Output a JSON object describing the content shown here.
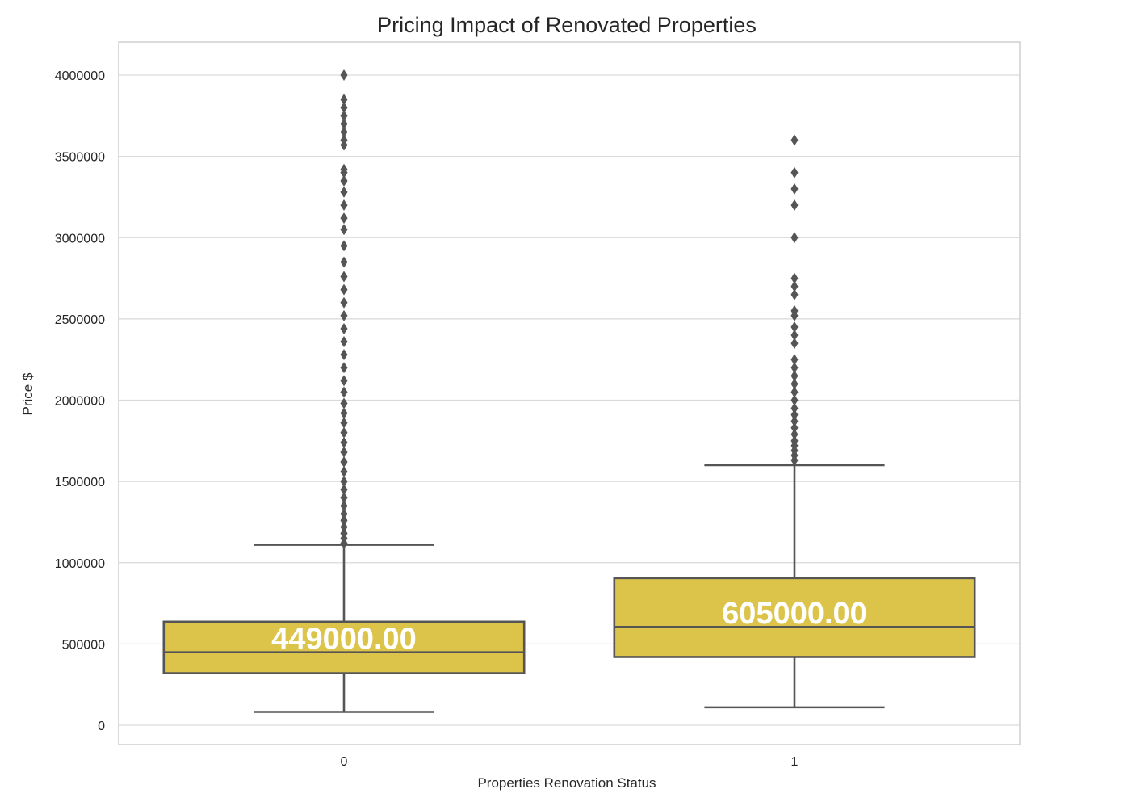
{
  "chart_data": {
    "type": "box",
    "title": "Pricing Impact of Renovated Properties",
    "xlabel": "Properties Renovation Status",
    "ylabel": "Price $",
    "ylim": [
      -100000,
      4200000
    ],
    "yticks": [
      0,
      500000,
      1000000,
      1500000,
      2000000,
      2500000,
      3000000,
      3500000,
      4000000
    ],
    "ytick_labels": [
      "0",
      "500000",
      "1000000",
      "1500000",
      "2000000",
      "2500000",
      "3000000",
      "3500000",
      "4000000"
    ],
    "categories": [
      "0",
      "1"
    ],
    "grid": true,
    "box_color": "#dcc44a",
    "edge_color": "#555555",
    "boxes": [
      {
        "category": "0",
        "whisker_low": 82000,
        "q1": 320000,
        "median": 449000,
        "q3": 637000,
        "whisker_high": 1110000,
        "median_label": "449000.00",
        "outliers": [
          1120000,
          1150000,
          1180000,
          1220000,
          1260000,
          1300000,
          1350000,
          1400000,
          1450000,
          1500000,
          1560000,
          1620000,
          1680000,
          1740000,
          1800000,
          1860000,
          1920000,
          1980000,
          2050000,
          2120000,
          2200000,
          2280000,
          2360000,
          2440000,
          2520000,
          2600000,
          2680000,
          2760000,
          2850000,
          2950000,
          3050000,
          3120000,
          3200000,
          3280000,
          3350000,
          3400000,
          3420000,
          3570000,
          3600000,
          3650000,
          3700000,
          3750000,
          3800000,
          3850000,
          4000000
        ]
      },
      {
        "category": "1",
        "whisker_low": 110000,
        "q1": 420000,
        "median": 605000,
        "q3": 905000,
        "whisker_high": 1600000,
        "median_label": "605000.00",
        "outliers": [
          1630000,
          1660000,
          1690000,
          1720000,
          1750000,
          1790000,
          1830000,
          1870000,
          1910000,
          1950000,
          2000000,
          2050000,
          2100000,
          2150000,
          2200000,
          2250000,
          2350000,
          2400000,
          2450000,
          2520000,
          2550000,
          2650000,
          2700000,
          2750000,
          3000000,
          3200000,
          3300000,
          3400000,
          3600000
        ]
      }
    ]
  }
}
